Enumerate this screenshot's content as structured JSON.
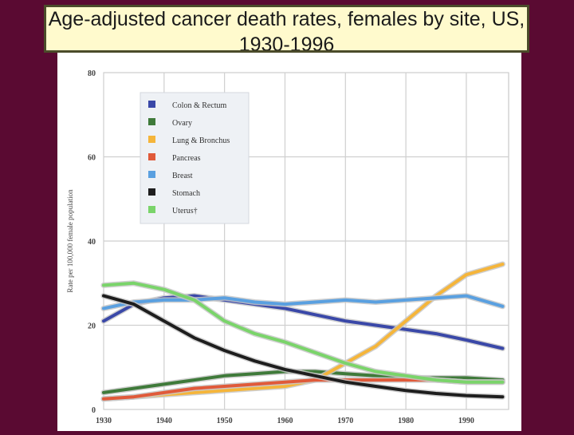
{
  "title": "Age-adjusted cancer death rates, females by site, US, 1930-1996",
  "chart_data": {
    "type": "line",
    "title": "Age-adjusted cancer death rates, females by site, US, 1930-1996",
    "xlabel": "",
    "ylabel": "Rate per 100,000 female population",
    "xlim": [
      1930,
      1997
    ],
    "ylim": [
      0,
      80
    ],
    "x_ticks": [
      1930,
      1940,
      1950,
      1960,
      1970,
      1980,
      1990
    ],
    "y_ticks": [
      0,
      20,
      40,
      60,
      80
    ],
    "grid": true,
    "legend_position": "top-left",
    "x": [
      1930,
      1935,
      1940,
      1945,
      1950,
      1955,
      1960,
      1965,
      1970,
      1975,
      1980,
      1985,
      1990,
      1996
    ],
    "series": [
      {
        "name": "Colon & Rectum",
        "color": "#3a48a8",
        "values": [
          21,
          25,
          26.5,
          27,
          26,
          25,
          24,
          22.5,
          21,
          20,
          19,
          18,
          16.5,
          14.5
        ]
      },
      {
        "name": "Ovary",
        "color": "#3f7a3a",
        "values": [
          4,
          5,
          6,
          7,
          8,
          8.5,
          9,
          9,
          8.5,
          8,
          7.5,
          7.5,
          7.5,
          7
        ]
      },
      {
        "name": "Lung & Bronchus",
        "color": "#f5b53a",
        "values": [
          2.5,
          3,
          3.5,
          4,
          4.5,
          5,
          5.5,
          7,
          11,
          15,
          21,
          27,
          32,
          34.5
        ]
      },
      {
        "name": "Pancreas",
        "color": "#e05a3a",
        "values": [
          2.5,
          3,
          4,
          5,
          5.5,
          6,
          6.5,
          7,
          7,
          7,
          7,
          7,
          6.5,
          6.5
        ]
      },
      {
        "name": "Breast",
        "color": "#5aa0e0",
        "values": [
          24,
          25.5,
          26,
          26,
          26.5,
          25.5,
          25,
          25.5,
          26,
          25.5,
          26,
          26.5,
          27,
          24.5
        ]
      },
      {
        "name": "Stomach",
        "color": "#1e1e1e",
        "values": [
          27,
          25,
          21,
          17,
          14,
          11.5,
          9.5,
          8,
          6.5,
          5.5,
          4.5,
          3.8,
          3.3,
          3
        ]
      },
      {
        "name": "Uterus",
        "color": "#7ad46a",
        "values": [
          29.5,
          30,
          28.5,
          26,
          21,
          18,
          16,
          13.5,
          11,
          9,
          8,
          7,
          6.5,
          6.5
        ]
      }
    ],
    "legend_marks": [
      "Uterus†"
    ]
  }
}
